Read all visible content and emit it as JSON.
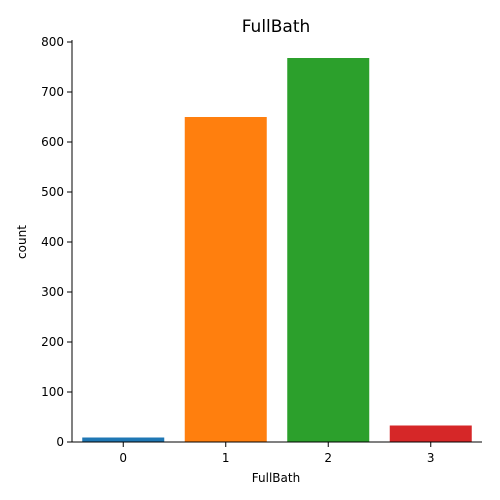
{
  "chart_data": {
    "type": "bar",
    "title": "FullBath",
    "xlabel": "FullBath",
    "ylabel": "count",
    "categories": [
      "0",
      "1",
      "2",
      "3"
    ],
    "values": [
      9,
      650,
      768,
      33
    ],
    "colors": [
      "#1f77b4",
      "#ff7f0e",
      "#2ca02c",
      "#d62728"
    ],
    "ylim": [
      0,
      800
    ],
    "yticks": [
      0,
      100,
      200,
      300,
      400,
      500,
      600,
      700,
      800
    ],
    "grid": false,
    "legend": "none"
  }
}
